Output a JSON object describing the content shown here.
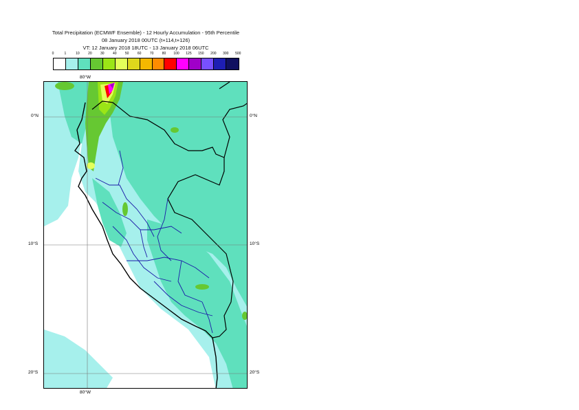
{
  "title": {
    "line1": "Total Precipitation (ECMWF Ensemble) - 12 Hourly Accumulation - 95th Percentile",
    "line2": "08 January 2018 00UTC (t+114,t+126)",
    "line3": "VT: 12 January 2018 18UTC - 13 January 2018 06UTC"
  },
  "legend": {
    "labels": [
      "0",
      "1",
      "10",
      "20",
      "30",
      "40",
      "50",
      "60",
      "70",
      "80",
      "100",
      "125",
      "150",
      "200",
      "300",
      "500"
    ],
    "colors": [
      "#ffffff",
      "#a6f0ec",
      "#5fe0bd",
      "#66c832",
      "#9be516",
      "#e4ff5a",
      "#ded81c",
      "#f5b800",
      "#ff8c00",
      "#ff0000",
      "#ff00ff",
      "#a000c8",
      "#7850ff",
      "#1e1eb4",
      "#101060"
    ]
  },
  "axes": {
    "lon_top": "80°W",
    "lon_bottom": "80°W",
    "lat_0": "0°N",
    "lat_10": "10°S",
    "lat_20": "20°S"
  }
}
